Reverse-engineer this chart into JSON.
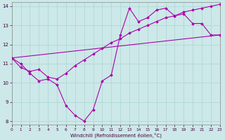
{
  "xlabel": "Windchill (Refroidissement éolien,°C)",
  "bg_color": "#cce8e8",
  "grid_color": "#aad4d4",
  "line_color": "#aa00aa",
  "xmin": 0,
  "xmax": 23,
  "ymin": 7.8,
  "ymax": 14.2,
  "yticks": [
    8,
    9,
    10,
    11,
    12,
    13,
    14
  ],
  "xticks": [
    0,
    1,
    2,
    3,
    4,
    5,
    6,
    7,
    8,
    9,
    10,
    11,
    12,
    13,
    14,
    15,
    16,
    17,
    18,
    19,
    20,
    21,
    22,
    23
  ],
  "line1_x": [
    0,
    1,
    2,
    3,
    4,
    5,
    6,
    7,
    8,
    9,
    10,
    11,
    12,
    13,
    14,
    15,
    16,
    17,
    18,
    19,
    20,
    21,
    22,
    23
  ],
  "line1_y": [
    11.3,
    11.0,
    10.5,
    10.1,
    10.2,
    9.9,
    8.8,
    8.3,
    8.0,
    8.6,
    10.1,
    10.4,
    12.5,
    13.9,
    13.2,
    13.4,
    13.8,
    13.9,
    13.5,
    13.6,
    13.1,
    13.1,
    12.5,
    12.5
  ],
  "line2_x": [
    0,
    23
  ],
  "line2_y": [
    11.3,
    12.5
  ],
  "line3_x": [
    0,
    1,
    2,
    3,
    4,
    5,
    6,
    7,
    8,
    9,
    10,
    11,
    12,
    13,
    14,
    15,
    16,
    17,
    18,
    19,
    20,
    21,
    22,
    23
  ],
  "line3_y": [
    11.3,
    10.8,
    10.6,
    10.7,
    10.3,
    10.2,
    10.5,
    10.9,
    11.2,
    11.5,
    11.8,
    12.1,
    12.3,
    12.6,
    12.8,
    13.0,
    13.2,
    13.4,
    13.5,
    13.7,
    13.8,
    13.9,
    14.0,
    14.1
  ],
  "ylabel_fontsize": 5,
  "tick_fontsize": 5,
  "xlabel_fontsize": 5
}
